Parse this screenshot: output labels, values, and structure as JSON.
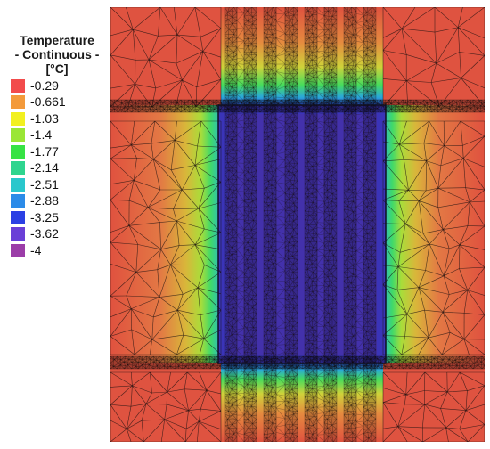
{
  "legend": {
    "title_line1": "Temperature",
    "title_line2": "- Continuous -",
    "title_line3": "[°C]",
    "entries": [
      {
        "label": "-0.29",
        "color": "#f24b4b"
      },
      {
        "label": "-0.661",
        "color": "#f39a3b"
      },
      {
        "label": "-1.03",
        "color": "#f2f020"
      },
      {
        "label": "-1.4",
        "color": "#9ae635"
      },
      {
        "label": "-1.77",
        "color": "#36e344"
      },
      {
        "label": "-2.14",
        "color": "#2ed58f"
      },
      {
        "label": "-2.51",
        "color": "#29c7cc"
      },
      {
        "label": "-2.88",
        "color": "#2b8be8"
      },
      {
        "label": "-3.25",
        "color": "#2b40e4"
      },
      {
        "label": "-3.62",
        "color": "#6a3fd7"
      },
      {
        "label": "-4",
        "color": "#9b3da8"
      }
    ]
  }
}
